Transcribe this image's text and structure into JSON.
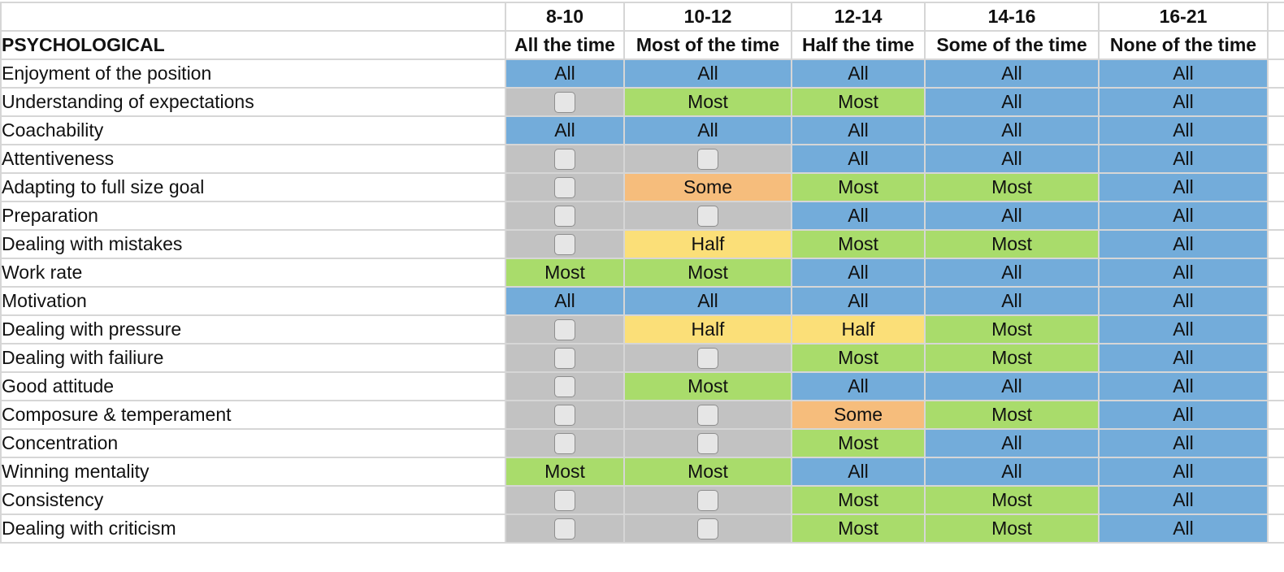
{
  "header": {
    "section_title": "PSYCHOLOGICAL",
    "columns": [
      {
        "age": "8-10",
        "frequency": "All the time"
      },
      {
        "age": "10-12",
        "frequency": "Most of the time"
      },
      {
        "age": "12-14",
        "frequency": "Half the time"
      },
      {
        "age": "14-16",
        "frequency": "Some of the time"
      },
      {
        "age": "16-21",
        "frequency": "None of the time"
      }
    ]
  },
  "legend_colors": {
    "All": "#73acda",
    "Most": "#a9dc6b",
    "Half": "#fbdf78",
    "Some": "#f6bd7c",
    "unchecked": "#c2c2c2"
  },
  "rows": [
    {
      "label": "Enjoyment of the position",
      "values": [
        "All",
        "All",
        "All",
        "All",
        "All"
      ]
    },
    {
      "label": "Understanding of expectations",
      "values": [
        "",
        "Most",
        "Most",
        "All",
        "All"
      ]
    },
    {
      "label": "Coachability",
      "values": [
        "All",
        "All",
        "All",
        "All",
        "All"
      ]
    },
    {
      "label": "Attentiveness",
      "values": [
        "",
        "",
        "All",
        "All",
        "All"
      ]
    },
    {
      "label": "Adapting to full size goal",
      "values": [
        "",
        "Some",
        "Most",
        "Most",
        "All"
      ]
    },
    {
      "label": "Preparation",
      "values": [
        "",
        "",
        "All",
        "All",
        "All"
      ]
    },
    {
      "label": "Dealing with mistakes",
      "values": [
        "",
        "Half",
        "Most",
        "Most",
        "All"
      ]
    },
    {
      "label": "Work rate",
      "values": [
        "Most",
        "Most",
        "All",
        "All",
        "All"
      ]
    },
    {
      "label": "Motivation",
      "values": [
        "All",
        "All",
        "All",
        "All",
        "All"
      ]
    },
    {
      "label": "Dealing with pressure",
      "values": [
        "",
        "Half",
        "Half",
        "Most",
        "All"
      ]
    },
    {
      "label": "Dealing with failiure",
      "values": [
        "",
        "",
        "Most",
        "Most",
        "All"
      ]
    },
    {
      "label": "Good attitude",
      "values": [
        "",
        "Most",
        "All",
        "All",
        "All"
      ]
    },
    {
      "label": "Composure & temperament",
      "values": [
        "",
        "",
        "Some",
        "Most",
        "All"
      ]
    },
    {
      "label": "Concentration",
      "values": [
        "",
        "",
        "Most",
        "All",
        "All"
      ]
    },
    {
      "label": "Winning mentality",
      "values": [
        "Most",
        "Most",
        "All",
        "All",
        "All"
      ]
    },
    {
      "label": "Consistency",
      "values": [
        "",
        "",
        "Most",
        "Most",
        "All"
      ]
    },
    {
      "label": "Dealing with criticism",
      "values": [
        "",
        "",
        "Most",
        "Most",
        "All"
      ]
    }
  ]
}
